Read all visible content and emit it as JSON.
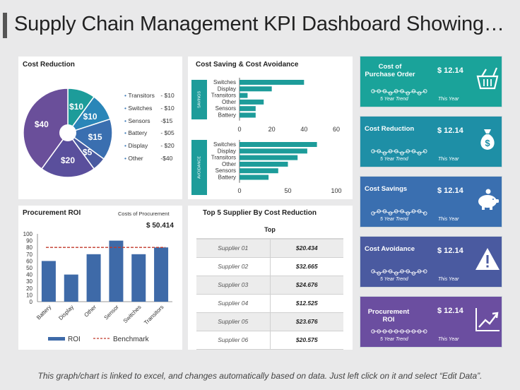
{
  "header": {
    "title": "Supply Chain Management KPI Dashboard Showing…"
  },
  "footer": {
    "note": "This graph/chart is linked to excel, and changes automatically based on data. Just left click on it and select “Edit Data”."
  },
  "colors": {
    "purple": "#6a4f9a",
    "teal": "#1d9c9a",
    "blue": "#3c74b3",
    "darkblue": "#4a6aa3",
    "kpi_teal": "#1aa39a",
    "kpi_teal2": "#1e8fa6",
    "kpi_blue": "#3a6fb0",
    "kpi_indigo": "#4a5aa0",
    "kpi_purple": "#6b4ea0",
    "bar_blue": "#3e6aa8",
    "benchmark": "#c0392b"
  },
  "cost_reduction": {
    "title": "Cost Reduction",
    "legend": [
      {
        "label": "Transitors",
        "value": "- $10"
      },
      {
        "label": "Switches",
        "value": "- $10"
      },
      {
        "label": "Sensors",
        "value": "-$15"
      },
      {
        "label": "Battery",
        "value": "- $05"
      },
      {
        "label": "Display",
        "value": "- $20"
      },
      {
        "label": "Other",
        "value": "-$40"
      }
    ]
  },
  "cost_saving": {
    "title": "Cost Saving & Cost Avoidance",
    "savings_label": "SAVINGS",
    "avoidance_label": "AVOIDANCE"
  },
  "procurement": {
    "title": "Procurement ROI",
    "costs_label": "Costs of Procurement",
    "costs_value": "$ 50.414",
    "legend_roi": "ROI",
    "legend_benchmark": "Benchmark"
  },
  "suppliers": {
    "title": "Top 5 Supplier By Cost Reduction",
    "header": "Top",
    "rows": [
      {
        "name": "Supplier 01",
        "value": "$20.434"
      },
      {
        "name": "Supplier 02",
        "value": "$32.665"
      },
      {
        "name": "Supplier 03",
        "value": "$24.676"
      },
      {
        "name": "Supplier 04",
        "value": "$12.525"
      },
      {
        "name": "Supplier 05",
        "value": "$23.676"
      },
      {
        "name": "Supplier 06",
        "value": "$20.575"
      }
    ]
  },
  "kpis": [
    {
      "name": "Cost of Purchase Order",
      "value": "$ 12.14",
      "trend": "5 Year Trend",
      "year": "This Year",
      "icon": "basket-icon"
    },
    {
      "name": "Cost Reduction",
      "value": "$ 12.14",
      "trend": "5 Year Trend",
      "year": "This Year",
      "icon": "money-bag-icon"
    },
    {
      "name": "Cost Savings",
      "value": "$ 12.14",
      "trend": "5 Year Trend",
      "year": "This Year",
      "icon": "piggy-bank-icon"
    },
    {
      "name": "Cost Avoidance",
      "value": "$ 12.14",
      "trend": "5 Year Trend",
      "year": "This Year",
      "icon": "warning-icon"
    },
    {
      "name": "Procurement ROI",
      "value": "$ 12.14",
      "trend": "5 Year Trend",
      "year": "This Year",
      "icon": "growth-chart-icon"
    }
  ],
  "chart_data": [
    {
      "type": "pie",
      "title": "Cost Reduction",
      "categories": [
        "Transitors",
        "Switches",
        "Sensors",
        "Battery",
        "Display",
        "Other"
      ],
      "values": [
        10,
        10,
        15,
        5,
        20,
        40
      ],
      "labels": [
        "$10",
        "$10",
        "$15",
        "$5",
        "$20",
        "$40"
      ]
    },
    {
      "type": "bar",
      "orientation": "horizontal",
      "title": "Savings",
      "categories": [
        "Switches",
        "Display",
        "Transitors",
        "Other",
        "Sensors",
        "Battery"
      ],
      "values": [
        40,
        20,
        5,
        15,
        10,
        10
      ],
      "xlim": [
        0,
        60
      ],
      "ticks": [
        "0",
        "20",
        "40",
        "60"
      ]
    },
    {
      "type": "bar",
      "orientation": "horizontal",
      "title": "Avoidance",
      "categories": [
        "Switches",
        "Display",
        "Transitors",
        "Other",
        "Sensors",
        "Battery"
      ],
      "values": [
        80,
        70,
        60,
        50,
        40,
        30
      ],
      "xlim": [
        0,
        100
      ],
      "ticks": [
        "0",
        "50",
        "100"
      ]
    },
    {
      "type": "bar",
      "title": "Procurement ROI",
      "categories": [
        "Battery",
        "Display",
        "Other",
        "Sensor",
        "Switches",
        "Transitors"
      ],
      "series": [
        {
          "name": "ROI",
          "values": [
            60,
            40,
            70,
            90,
            70,
            80
          ]
        }
      ],
      "benchmark": 80,
      "ylim": [
        0,
        100
      ],
      "ticks": [
        "0",
        "10",
        "20",
        "30",
        "40",
        "50",
        "60",
        "70",
        "80",
        "90",
        "100"
      ]
    },
    {
      "type": "line",
      "title": "5 Year Trend (sparklines)",
      "series": [
        {
          "name": "Cost of Purchase Order",
          "values": [
            3,
            3,
            3,
            2,
            3,
            3,
            2,
            3,
            2,
            3
          ]
        },
        {
          "name": "Cost Reduction",
          "values": [
            3,
            3,
            2,
            3,
            3,
            2,
            3,
            3,
            2,
            3
          ]
        },
        {
          "name": "Cost Savings",
          "values": [
            2,
            3,
            3,
            2,
            3,
            3,
            2,
            3,
            3,
            2
          ]
        },
        {
          "name": "Cost Avoidance",
          "values": [
            3,
            2,
            3,
            3,
            2,
            3,
            3,
            2,
            3,
            3
          ]
        },
        {
          "name": "Procurement ROI",
          "values": [
            3,
            3,
            3,
            3,
            3,
            3,
            3,
            3,
            3,
            3
          ]
        }
      ]
    }
  ]
}
